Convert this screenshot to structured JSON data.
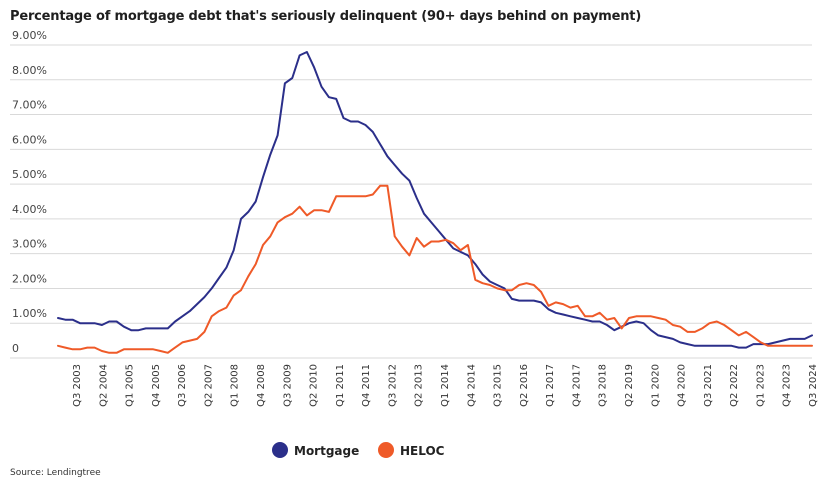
{
  "title": "Percentage of mortgage debt that's seriously delinquent (90+ days behind on payment)",
  "source": "Source: Lendingtree",
  "chart_data": {
    "type": "line",
    "title": "Percentage of mortgage debt that's seriously delinquent (90+ days behind on payment)",
    "xlabel": "",
    "ylabel": "",
    "ylim": [
      0,
      9
    ],
    "y_ticks": [
      "0",
      "1.00%",
      "2.00%",
      "3.00%",
      "4.00%",
      "5.00%",
      "6.00%",
      "7.00%",
      "8.00%",
      "9.00%"
    ],
    "x_tick_labels": [
      "Q3 2003",
      "Q2 2004",
      "Q1 2005",
      "Q4 2005",
      "Q3 2006",
      "Q2 2007",
      "Q1 2008",
      "Q4 2008",
      "Q3 2009",
      "Q2 2010",
      "Q1 2011",
      "Q4 2011",
      "Q3 2012",
      "Q2 2013",
      "Q1 2014",
      "Q4 2014",
      "Q3 2015",
      "Q2 2016",
      "Q1 2017",
      "Q4 2017",
      "Q3 2018",
      "Q2 2019",
      "Q1 2020",
      "Q4 2020",
      "Q3 2021",
      "Q2 2022",
      "Q1 2023",
      "Q4 2023",
      "Q3 2024"
    ],
    "legend_position": "bottom",
    "grid": "horizontal",
    "colors": {
      "Mortgage": "#2b2f8a",
      "HELOC": "#ef5a28"
    },
    "series": [
      {
        "name": "Mortgage",
        "values": [
          1.15,
          1.1,
          1.1,
          1.0,
          1.0,
          1.0,
          0.95,
          1.05,
          1.05,
          0.9,
          0.8,
          0.8,
          0.85,
          0.85,
          0.85,
          0.85,
          1.05,
          1.2,
          1.35,
          1.55,
          1.75,
          2.0,
          2.3,
          2.6,
          3.1,
          4.0,
          4.2,
          4.5,
          5.2,
          5.85,
          6.4,
          7.9,
          8.05,
          8.7,
          8.8,
          8.35,
          7.8,
          7.5,
          7.45,
          6.9,
          6.8,
          6.8,
          6.7,
          6.5,
          6.15,
          5.8,
          5.55,
          5.3,
          5.1,
          4.6,
          4.15,
          3.9,
          3.65,
          3.4,
          3.15,
          3.05,
          2.95,
          2.7,
          2.4,
          2.2,
          2.1,
          2.0,
          1.7,
          1.65,
          1.65,
          1.65,
          1.6,
          1.4,
          1.3,
          1.25,
          1.2,
          1.15,
          1.1,
          1.05,
          1.05,
          0.95,
          0.8,
          0.9,
          1.0,
          1.05,
          1.0,
          0.8,
          0.65,
          0.6,
          0.55,
          0.45,
          0.4,
          0.35,
          0.35,
          0.35,
          0.35,
          0.35,
          0.35,
          0.3,
          0.3,
          0.4,
          0.4,
          0.4,
          0.45,
          0.5,
          0.55,
          0.55,
          0.55,
          0.65
        ],
        "x_index": "quarterly, Q3 2003 to Q3 2024"
      },
      {
        "name": "HELOC",
        "values": [
          0.35,
          0.3,
          0.25,
          0.25,
          0.3,
          0.3,
          0.2,
          0.15,
          0.15,
          0.25,
          0.25,
          0.25,
          0.25,
          0.25,
          0.2,
          0.15,
          0.3,
          0.45,
          0.5,
          0.55,
          0.75,
          1.2,
          1.35,
          1.45,
          1.8,
          1.95,
          2.35,
          2.7,
          3.25,
          3.5,
          3.9,
          4.05,
          4.15,
          4.35,
          4.1,
          4.25,
          4.25,
          4.2,
          4.65,
          4.65,
          4.65,
          4.65,
          4.65,
          4.7,
          4.95,
          4.95,
          3.5,
          3.2,
          2.95,
          3.45,
          3.2,
          3.35,
          3.35,
          3.4,
          3.3,
          3.1,
          3.25,
          2.25,
          2.15,
          2.1,
          2.0,
          1.95,
          1.95,
          2.1,
          2.15,
          2.1,
          1.9,
          1.5,
          1.6,
          1.55,
          1.45,
          1.5,
          1.2,
          1.2,
          1.3,
          1.1,
          1.15,
          0.85,
          1.15,
          1.2,
          1.2,
          1.2,
          1.15,
          1.1,
          0.95,
          0.9,
          0.75,
          0.75,
          0.85,
          1.0,
          1.05,
          0.95,
          0.8,
          0.65,
          0.75,
          0.6,
          0.45,
          0.35,
          0.35,
          0.35,
          0.35,
          0.35,
          0.35,
          0.35
        ],
        "x_index": "quarterly, Q3 2003 to Q3 2024"
      }
    ]
  }
}
